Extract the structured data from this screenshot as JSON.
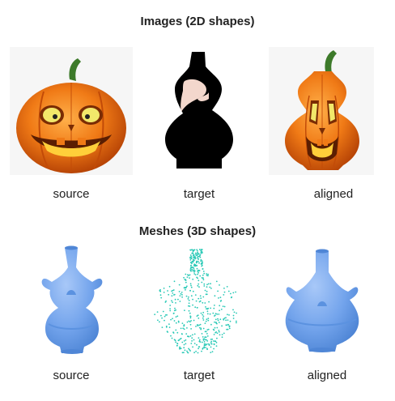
{
  "sections": {
    "images": {
      "title": "Images (2D shapes)",
      "captions": [
        "source",
        "target",
        "aligned"
      ]
    },
    "meshes": {
      "title": "Meshes (3D shapes)",
      "captions": [
        "source",
        "target",
        "aligned"
      ]
    }
  },
  "colors": {
    "pumpkin_orange": "#f07a16",
    "pumpkin_dark": "#c24b08",
    "stem_green": "#3d7a2a",
    "eye_yellow": "#f2e86a",
    "mesh_blue": "#73a4ec",
    "mesh_blue_dark": "#4f86d6",
    "pointcloud_teal": "#29c9b6",
    "silhouette_black": "#000000",
    "silhouette_skin": "#f3d7cc"
  }
}
